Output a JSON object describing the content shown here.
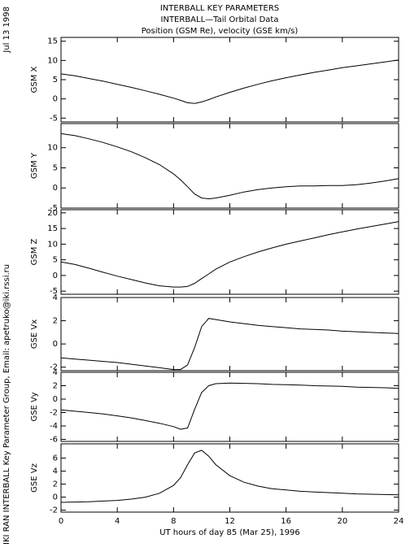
{
  "header": {
    "title": "INTERBALL KEY PARAMETERS",
    "subtitle": "INTERBALL—Tail Orbital Data",
    "caption": "Position (GSM Re), velocity (GSE km/s)"
  },
  "side_labels": {
    "date": "Jul 13 1998",
    "credit": "IKI RAN INTERBALL Key Parameter Group, Email: apetruko@iki.rssi.ru"
  },
  "chart_data": [
    {
      "type": "line",
      "ylabel": "GSM X",
      "xlim": [
        0,
        24
      ],
      "ylim": [
        -6,
        16
      ],
      "yticks": [
        -5,
        0,
        5,
        10,
        15
      ],
      "x": [
        0,
        1,
        2,
        3,
        4,
        5,
        6,
        7,
        8,
        8.5,
        9,
        9.5,
        10,
        10.5,
        11,
        12,
        13,
        14,
        15,
        16,
        17,
        18,
        19,
        20,
        21,
        22,
        23,
        24
      ],
      "series": [
        {
          "color": "#000000",
          "values": [
            6.5,
            6,
            5.3,
            4.6,
            3.8,
            3,
            2.1,
            1.2,
            0.2,
            -0.4,
            -1,
            -1.2,
            -0.8,
            -0.2,
            0.5,
            1.7,
            2.8,
            3.8,
            4.7,
            5.5,
            6.2,
            6.9,
            7.5,
            8.1,
            8.6,
            9.1,
            9.6,
            10.1
          ]
        }
      ]
    },
    {
      "type": "line",
      "ylabel": "GSM Y",
      "xlim": [
        0,
        24
      ],
      "ylim": [
        -5,
        16
      ],
      "yticks": [
        -5,
        0,
        5,
        10
      ],
      "x": [
        0,
        1,
        2,
        3,
        4,
        5,
        6,
        7,
        8,
        8.5,
        9,
        9.5,
        10,
        10.5,
        11,
        12,
        13,
        14,
        15,
        16,
        17,
        18,
        19,
        20,
        21,
        22,
        23,
        24
      ],
      "series": [
        {
          "color": "#000000",
          "values": [
            13.5,
            13,
            12.2,
            11.3,
            10.2,
            9,
            7.5,
            5.8,
            3.5,
            2,
            0.3,
            -1.5,
            -2.5,
            -2.7,
            -2.5,
            -1.8,
            -1,
            -0.4,
            0,
            0.3,
            0.5,
            0.5,
            0.6,
            0.6,
            0.8,
            1.2,
            1.7,
            2.3
          ]
        }
      ]
    },
    {
      "type": "line",
      "ylabel": "GSM Z",
      "xlim": [
        0,
        24
      ],
      "ylim": [
        -6,
        21
      ],
      "yticks": [
        -5,
        0,
        5,
        10,
        15,
        20
      ],
      "x": [
        0,
        1,
        2,
        3,
        4,
        5,
        6,
        7,
        8,
        8.5,
        9,
        9.5,
        10,
        10.5,
        11,
        12,
        13,
        14,
        15,
        16,
        17,
        18,
        19,
        20,
        21,
        22,
        23,
        24
      ],
      "series": [
        {
          "color": "#000000",
          "values": [
            4.3,
            3.5,
            2.3,
            1,
            -0.2,
            -1.3,
            -2.4,
            -3.3,
            -3.7,
            -3.7,
            -3.5,
            -2.5,
            -1,
            0.5,
            2,
            4.3,
            6,
            7.5,
            8.8,
            10,
            11,
            12,
            13,
            13.9,
            14.8,
            15.6,
            16.4,
            17.2
          ]
        }
      ]
    },
    {
      "type": "line",
      "ylabel": "GSE Vx",
      "xlim": [
        0,
        24
      ],
      "ylim": [
        -2.3,
        4
      ],
      "yticks": [
        -2,
        0,
        2,
        4
      ],
      "x": [
        0,
        1,
        2,
        3,
        4,
        5,
        6,
        7,
        8,
        8.5,
        9,
        9.5,
        10,
        10.5,
        11,
        12,
        13,
        14,
        15,
        16,
        17,
        18,
        19,
        20,
        21,
        22,
        23,
        24
      ],
      "series": [
        {
          "color": "#000000",
          "values": [
            -1.2,
            -1.3,
            -1.4,
            -1.5,
            -1.6,
            -1.75,
            -1.9,
            -2.05,
            -2.2,
            -2.2,
            -1.8,
            -0.3,
            1.5,
            2.2,
            2.1,
            1.9,
            1.75,
            1.6,
            1.5,
            1.4,
            1.3,
            1.25,
            1.2,
            1.1,
            1.05,
            1,
            0.95,
            0.9
          ]
        }
      ]
    },
    {
      "type": "line",
      "ylabel": "GSE Vy",
      "xlim": [
        0,
        24
      ],
      "ylim": [
        -6.3,
        4
      ],
      "yticks": [
        -6,
        -4,
        -2,
        0,
        2,
        4
      ],
      "x": [
        0,
        1,
        2,
        3,
        4,
        5,
        6,
        7,
        8,
        8.5,
        9,
        9.5,
        10,
        10.5,
        11,
        12,
        13,
        14,
        15,
        16,
        17,
        18,
        19,
        20,
        21,
        22,
        23,
        24
      ],
      "series": [
        {
          "color": "#000000",
          "values": [
            -1.6,
            -1.8,
            -2,
            -2.2,
            -2.5,
            -2.8,
            -3.2,
            -3.6,
            -4.1,
            -4.5,
            -4.3,
            -1.5,
            1,
            2,
            2.3,
            2.4,
            2.35,
            2.3,
            2.2,
            2.15,
            2.1,
            2,
            1.95,
            1.9,
            1.8,
            1.75,
            1.7,
            1.6
          ]
        }
      ]
    },
    {
      "type": "line",
      "ylabel": "GSE Vz",
      "xlabel": "UT hours of day  85 (Mar 25), 1996",
      "xlim": [
        0,
        24
      ],
      "ylim": [
        -2.3,
        8.2
      ],
      "yticks": [
        -2,
        0,
        2,
        4,
        6
      ],
      "xticks": [
        0,
        4,
        8,
        12,
        16,
        20,
        24
      ],
      "x": [
        0,
        1,
        2,
        3,
        4,
        5,
        6,
        7,
        8,
        8.5,
        9,
        9.5,
        10,
        10.5,
        11,
        12,
        13,
        14,
        15,
        16,
        17,
        18,
        19,
        20,
        21,
        22,
        23,
        24
      ],
      "series": [
        {
          "color": "#000000",
          "values": [
            -0.8,
            -0.75,
            -0.7,
            -0.6,
            -0.5,
            -0.3,
            0,
            0.6,
            1.8,
            3,
            5,
            6.8,
            7.2,
            6.3,
            5,
            3.3,
            2.3,
            1.7,
            1.3,
            1.1,
            0.9,
            0.8,
            0.7,
            0.6,
            0.5,
            0.45,
            0.4,
            0.35
          ]
        }
      ]
    }
  ]
}
